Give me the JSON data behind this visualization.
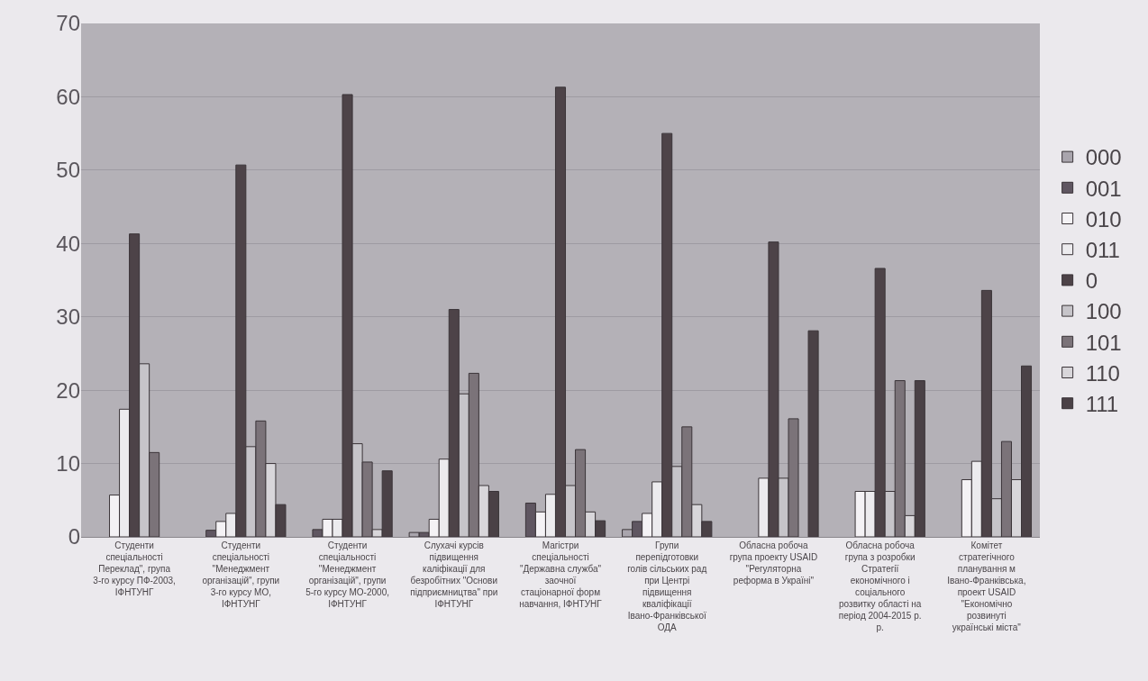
{
  "chart_data": {
    "type": "bar",
    "categories": [
      "Студенти спеціальності Переклад\", група 3-го курсу ПФ-2003, ІФНТУНГ",
      "Студенти спеціальності \"Менеджмент організацій\", групи 3-го курсу МО, ІФНТУНГ",
      "Студенти спеціальності \"Менеджмент організацій\", групи 5-го курсу МО-2000, ІФНТУНГ",
      "Слухачі курсів підвищення каліфікації для безробітних \"Основи підприємництва\" при ІФНТУНГ",
      "Магістри спеціальності \"Державна служба\" заочної стаціонарної форм навчання, ІФНТУНГ",
      "Групи перепідготовки голів сільських рад при Центрі підвищення кваліфікації Івано-Франківської ОДА",
      "Обласна робоча група проекту USAID \"Регуляторна реформа в Україні\"",
      "Обласна робоча група з розробки Стратегії економічного і соціального розвитку області на період 2004-2015 р. р.",
      "Комітет стратегічного планування м Івано-Франківська, проект USAID \"Економічно розвинуті українські міста\""
    ],
    "series": [
      {
        "name": "000",
        "color": "#a9a5ad",
        "values": [
          null,
          null,
          null,
          0.6,
          null,
          1,
          null,
          null,
          null
        ]
      },
      {
        "name": "001",
        "color": "#5f5661",
        "values": [
          null,
          0.9,
          1,
          0.6,
          4.6,
          2.1,
          null,
          null,
          null
        ]
      },
      {
        "name": "010",
        "color": "#f4f2f5",
        "values": [
          5.7,
          2.1,
          2.4,
          2.4,
          3.4,
          3.2,
          null,
          6.2,
          7.8
        ]
      },
      {
        "name": "011",
        "color": "#ecebee",
        "values": [
          17.4,
          3.2,
          2.4,
          10.6,
          5.8,
          7.5,
          8,
          6.2,
          10.3
        ]
      },
      {
        "name": "0",
        "color": "#4d4348",
        "values": [
          41.3,
          50.7,
          60.3,
          31,
          61.3,
          55,
          40.2,
          36.6,
          33.6
        ]
      },
      {
        "name": "100",
        "color": "#c6c4c9",
        "values": [
          23.6,
          12.3,
          12.7,
          19.5,
          7,
          9.6,
          8,
          6.2,
          5.2
        ]
      },
      {
        "name": "101",
        "color": "#7b7379",
        "values": [
          11.5,
          15.8,
          10.2,
          22.3,
          11.9,
          15,
          16.1,
          21.3,
          13
        ]
      },
      {
        "name": "110",
        "color": "#d8d6da",
        "values": [
          null,
          10,
          1,
          7,
          3.4,
          4.4,
          null,
          2.9,
          7.8
        ]
      },
      {
        "name": "111",
        "color": "#4a4146",
        "values": [
          null,
          4.4,
          9,
          6.2,
          2.2,
          2.1,
          28.1,
          21.3,
          23.3
        ]
      }
    ],
    "ylim": [
      0,
      70
    ],
    "yticks": [
      0,
      10,
      20,
      30,
      40,
      50,
      60,
      70
    ],
    "grid": "y",
    "legend": "right"
  }
}
